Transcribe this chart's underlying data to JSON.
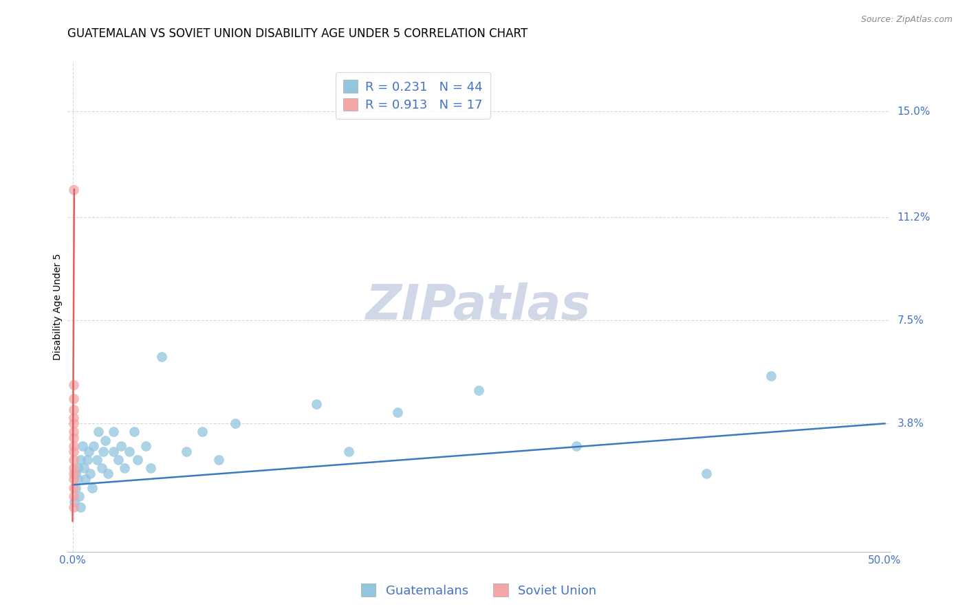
{
  "title": "GUATEMALAN VS SOVIET UNION DISABILITY AGE UNDER 5 CORRELATION CHART",
  "source": "Source: ZipAtlas.com",
  "ylabel": "Disability Age Under 5",
  "ytick_labels": [
    "15.0%",
    "11.2%",
    "7.5%",
    "3.8%"
  ],
  "ytick_values": [
    0.15,
    0.112,
    0.075,
    0.038
  ],
  "xlim": [
    -0.003,
    0.503
  ],
  "ylim": [
    -0.008,
    0.168
  ],
  "watermark_text": "ZIPatlas",
  "legend_blue_r": "R = 0.231",
  "legend_blue_n": "N = 44",
  "legend_pink_r": "R = 0.913",
  "legend_pink_n": "N = 17",
  "blue_scatter_color": "#92c5de",
  "pink_scatter_color": "#f4a5a5",
  "blue_line_color": "#3a7bbf",
  "pink_line_color": "#e06060",
  "blue_line_x": [
    0.0,
    0.5
  ],
  "blue_line_y": [
    0.016,
    0.038
  ],
  "pink_line_x": [
    0.0,
    0.001
  ],
  "pink_line_y": [
    0.003,
    0.122
  ],
  "guatemalan_x": [
    0.001,
    0.002,
    0.002,
    0.003,
    0.003,
    0.004,
    0.005,
    0.005,
    0.006,
    0.007,
    0.008,
    0.009,
    0.01,
    0.011,
    0.012,
    0.013,
    0.015,
    0.016,
    0.018,
    0.019,
    0.02,
    0.022,
    0.025,
    0.025,
    0.028,
    0.03,
    0.032,
    0.035,
    0.038,
    0.04,
    0.045,
    0.048,
    0.055,
    0.07,
    0.08,
    0.09,
    0.1,
    0.15,
    0.17,
    0.2,
    0.25,
    0.31,
    0.39,
    0.43
  ],
  "guatemalan_y": [
    0.01,
    0.015,
    0.02,
    0.018,
    0.022,
    0.012,
    0.025,
    0.008,
    0.03,
    0.022,
    0.018,
    0.025,
    0.028,
    0.02,
    0.015,
    0.03,
    0.025,
    0.035,
    0.022,
    0.028,
    0.032,
    0.02,
    0.028,
    0.035,
    0.025,
    0.03,
    0.022,
    0.028,
    0.035,
    0.025,
    0.03,
    0.022,
    0.062,
    0.028,
    0.035,
    0.025,
    0.038,
    0.045,
    0.028,
    0.042,
    0.05,
    0.03,
    0.02,
    0.055
  ],
  "soviet_x": [
    0.0005,
    0.0005,
    0.0005,
    0.0005,
    0.0005,
    0.0005,
    0.0005,
    0.0005,
    0.0005,
    0.0005,
    0.0005,
    0.0005,
    0.0005,
    0.0005,
    0.0005,
    0.0005,
    0.0005
  ],
  "soviet_y": [
    0.008,
    0.012,
    0.015,
    0.018,
    0.02,
    0.022,
    0.025,
    0.028,
    0.03,
    0.033,
    0.035,
    0.038,
    0.04,
    0.043,
    0.047,
    0.052,
    0.122
  ],
  "marker_size": 100,
  "marker_alpha": 0.75,
  "background_color": "#ffffff",
  "grid_color": "#d8d8d8",
  "title_fontsize": 12,
  "axis_label_fontsize": 10,
  "tick_label_color": "#4472c4",
  "tick_label_fontsize": 11,
  "legend_fontsize": 13,
  "watermark_fontsize": 52,
  "watermark_color": "#d0d8e8",
  "source_fontsize": 9
}
